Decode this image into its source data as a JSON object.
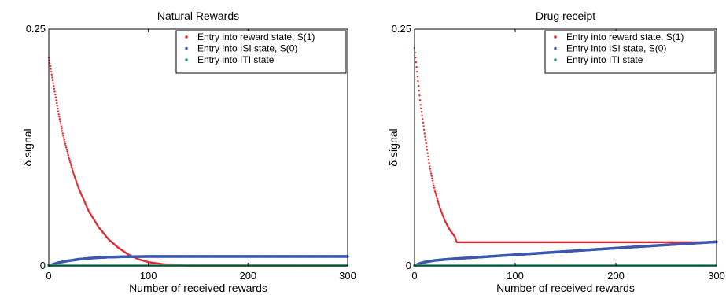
{
  "chart_data": [
    {
      "type": "scatter",
      "title": "Natural Rewards",
      "xlabel": "Number of received rewards",
      "ylabel": "δ signal",
      "xlim": [
        0,
        300
      ],
      "ylim": [
        0,
        0.25
      ],
      "x_ticks": [
        0,
        100,
        200,
        300
      ],
      "x_tick_labels": [
        "0",
        "100",
        "200",
        "300"
      ],
      "y_ticks": [
        0,
        0.25
      ],
      "y_tick_labels": [
        "0",
        "0.25"
      ],
      "grid": false,
      "legend_position": "top-right",
      "series": [
        {
          "name": "Entry into reward state, S(1)",
          "color": "#e8262b",
          "x": [
            0,
            5,
            10,
            15,
            20,
            25,
            30,
            40,
            50,
            60,
            70,
            80,
            90,
            100,
            120,
            150,
            200,
            250,
            300
          ],
          "y": [
            0.22,
            0.19,
            0.16,
            0.135,
            0.115,
            0.097,
            0.082,
            0.058,
            0.041,
            0.028,
            0.019,
            0.012,
            0.007,
            0.004,
            0.001,
            0.0,
            0.0,
            0.0,
            0.0
          ]
        },
        {
          "name": "Entry into ISI state, S(0)",
          "color": "#3b59b0",
          "x": [
            0,
            5,
            10,
            20,
            30,
            40,
            50,
            60,
            70,
            80,
            100,
            150,
            200,
            250,
            300
          ],
          "y": [
            0.0,
            0.002,
            0.0035,
            0.0055,
            0.007,
            0.008,
            0.0088,
            0.0093,
            0.0096,
            0.0098,
            0.01,
            0.01,
            0.01,
            0.01,
            0.01
          ]
        },
        {
          "name": "Entry into ITI state",
          "color": "#17a86b",
          "x": [
            0,
            300
          ],
          "y": [
            0.0,
            0.0
          ]
        }
      ]
    },
    {
      "type": "scatter",
      "title": "Drug receipt",
      "xlabel": "Number of received rewards",
      "ylabel": "δ signal",
      "xlim": [
        0,
        300
      ],
      "ylim": [
        0,
        0.25
      ],
      "x_ticks": [
        0,
        100,
        200,
        300
      ],
      "x_tick_labels": [
        "0",
        "100",
        "200",
        "300"
      ],
      "y_ticks": [
        0,
        0.25
      ],
      "y_tick_labels": [
        "0",
        "0.25"
      ],
      "grid": false,
      "legend_position": "top-right",
      "series": [
        {
          "name": "Entry into reward state, S(1)",
          "color": "#e8262b",
          "x": [
            0,
            3,
            6,
            10,
            15,
            20,
            25,
            30,
            35,
            40,
            42,
            50,
            100,
            150,
            200,
            250,
            300
          ],
          "y": [
            0.23,
            0.2,
            0.17,
            0.14,
            0.105,
            0.08,
            0.062,
            0.048,
            0.038,
            0.031,
            0.025,
            0.025,
            0.025,
            0.025,
            0.025,
            0.025,
            0.025
          ]
        },
        {
          "name": "Entry into ISI state, S(0)",
          "color": "#3b59b0",
          "x": [
            0,
            5,
            10,
            20,
            30,
            40,
            50,
            100,
            150,
            200,
            250,
            300
          ],
          "y": [
            0.0,
            0.0025,
            0.004,
            0.0058,
            0.0068,
            0.0076,
            0.0083,
            0.0118,
            0.0153,
            0.0188,
            0.0222,
            0.0255
          ]
        },
        {
          "name": "Entry into ITI state",
          "color": "#17a86b",
          "x": [
            0,
            300
          ],
          "y": [
            0.0,
            0.0
          ]
        }
      ]
    }
  ]
}
